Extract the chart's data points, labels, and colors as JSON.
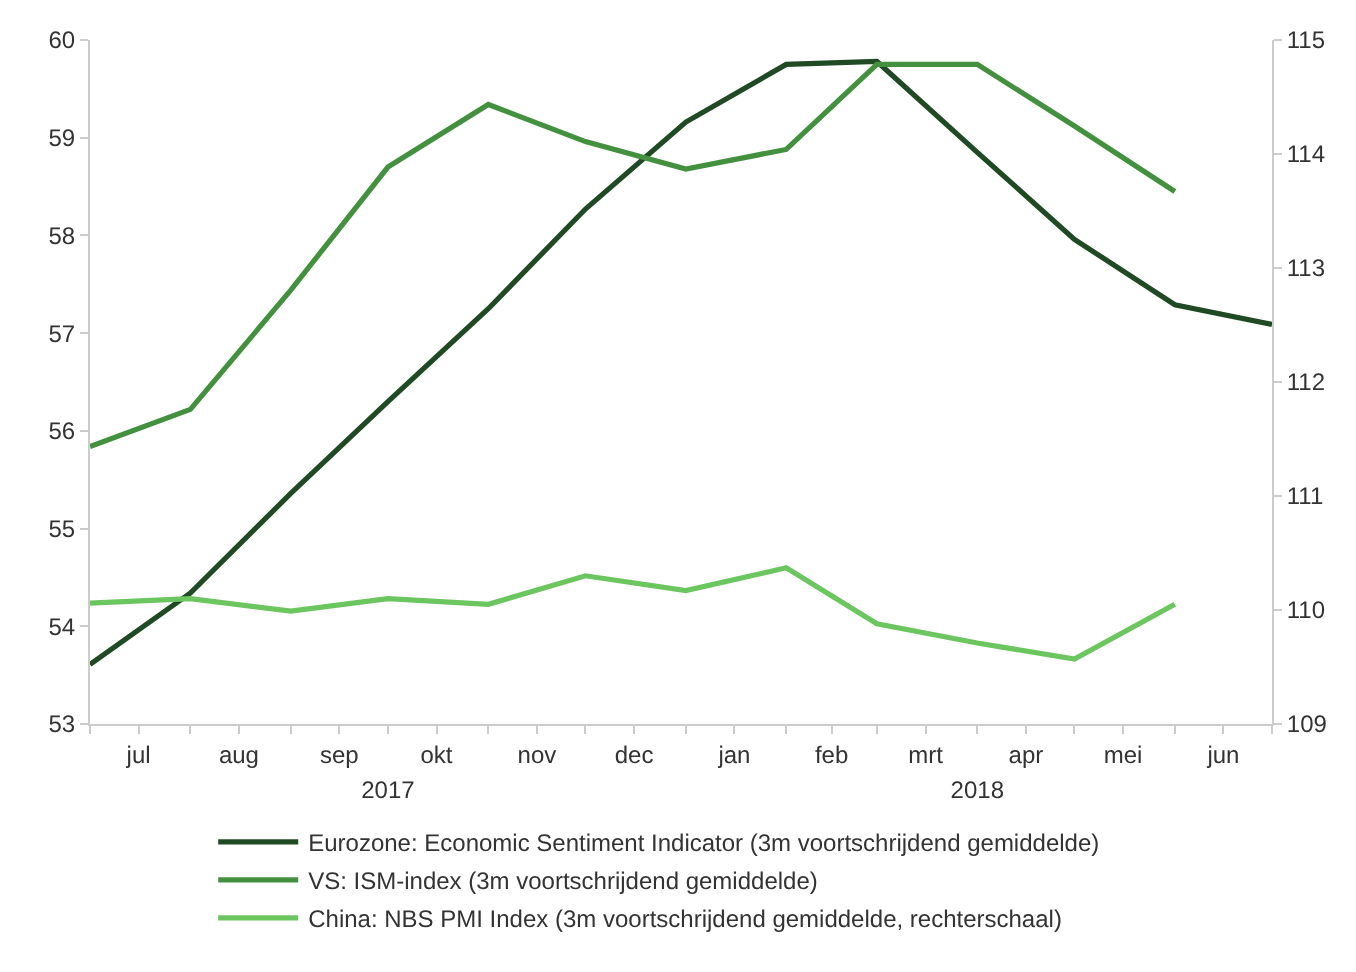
{
  "chart_data": {
    "type": "line",
    "x": [
      "2017-07",
      "2017-08",
      "2017-09",
      "2017-10",
      "2017-11",
      "2017-12",
      "2018-01",
      "2018-02",
      "2018-03",
      "2018-04",
      "2018-05",
      "2018-06",
      "2018-07"
    ],
    "xlim": [
      "2017-07",
      "2018-07"
    ],
    "xticks": [
      {
        "value": "2017-07",
        "label": null
      },
      {
        "value": "2017-07-16",
        "label": "jul"
      },
      {
        "value": "2017-08",
        "label": null
      },
      {
        "value": "2017-08-16",
        "label": "aug"
      },
      {
        "value": "2017-09",
        "label": null
      },
      {
        "value": "2017-09-16",
        "label": "sep"
      },
      {
        "value": "2017-10",
        "label": null
      },
      {
        "value": "2017-10-16",
        "label": "okt"
      },
      {
        "value": "2017-11",
        "label": null
      },
      {
        "value": "2017-11-16",
        "label": "nov"
      },
      {
        "value": "2017-12",
        "label": null
      },
      {
        "value": "2017-12-16",
        "label": "dec"
      },
      {
        "value": "2018-01",
        "label": null
      },
      {
        "value": "2018-01-16",
        "label": "jan"
      },
      {
        "value": "2018-02",
        "label": null
      },
      {
        "value": "2018-02-15",
        "label": "feb"
      },
      {
        "value": "2018-03",
        "label": null
      },
      {
        "value": "2018-03-16",
        "label": "mrt"
      },
      {
        "value": "2018-04",
        "label": null
      },
      {
        "value": "2018-04-16",
        "label": "apr"
      },
      {
        "value": "2018-05",
        "label": null
      },
      {
        "value": "2018-05-16",
        "label": "mei"
      },
      {
        "value": "2018-06",
        "label": null
      },
      {
        "value": "2018-06-16",
        "label": "jun"
      },
      {
        "value": "2018-07",
        "label": null
      }
    ],
    "x2lim": [
      "2017-07",
      "2018-07"
    ],
    "x2ticks": [
      {
        "value": "2017-10",
        "label": "2017"
      },
      {
        "value": "2018-04",
        "label": "2018"
      }
    ],
    "ylim": [
      53,
      60
    ],
    "yticks": [
      53,
      54,
      55,
      56,
      57,
      58,
      59,
      60
    ],
    "y2lim": [
      109,
      115
    ],
    "y2ticks": [
      109,
      110,
      111,
      112,
      113,
      114,
      115
    ],
    "grid": false,
    "legend": "bottom",
    "marker": "none",
    "line_style": "solid",
    "series": [
      {
        "name": "Eurozone: Economic Sentiment Indicator (3m voortschrijdend gemiddelde)",
        "color": "#1f4a23",
        "values": [
          53.61,
          54.34,
          55.36,
          56.3,
          57.25,
          58.27,
          59.16,
          59.75,
          59.78,
          58.85,
          57.96,
          57.29,
          57.09
        ]
      },
      {
        "name": "VS: ISM-index (3m voortschrijdend gemiddelde)",
        "color": "#43913f",
        "values": [
          55.84,
          56.22,
          57.44,
          58.7,
          59.34,
          58.96,
          58.68,
          58.88,
          59.75,
          59.75,
          59.12,
          58.45,
          null
        ]
      },
      {
        "name": "China: NBS PMI Index (3m voortschrijdend gemiddelde, rechterschaal)",
        "color": "#6cc65f",
        "axis": "y2",
        "values": [
          110.06,
          110.1,
          109.99,
          110.1,
          110.05,
          110.3,
          110.17,
          110.37,
          109.88,
          109.71,
          109.57,
          110.05,
          null
        ]
      }
    ]
  }
}
